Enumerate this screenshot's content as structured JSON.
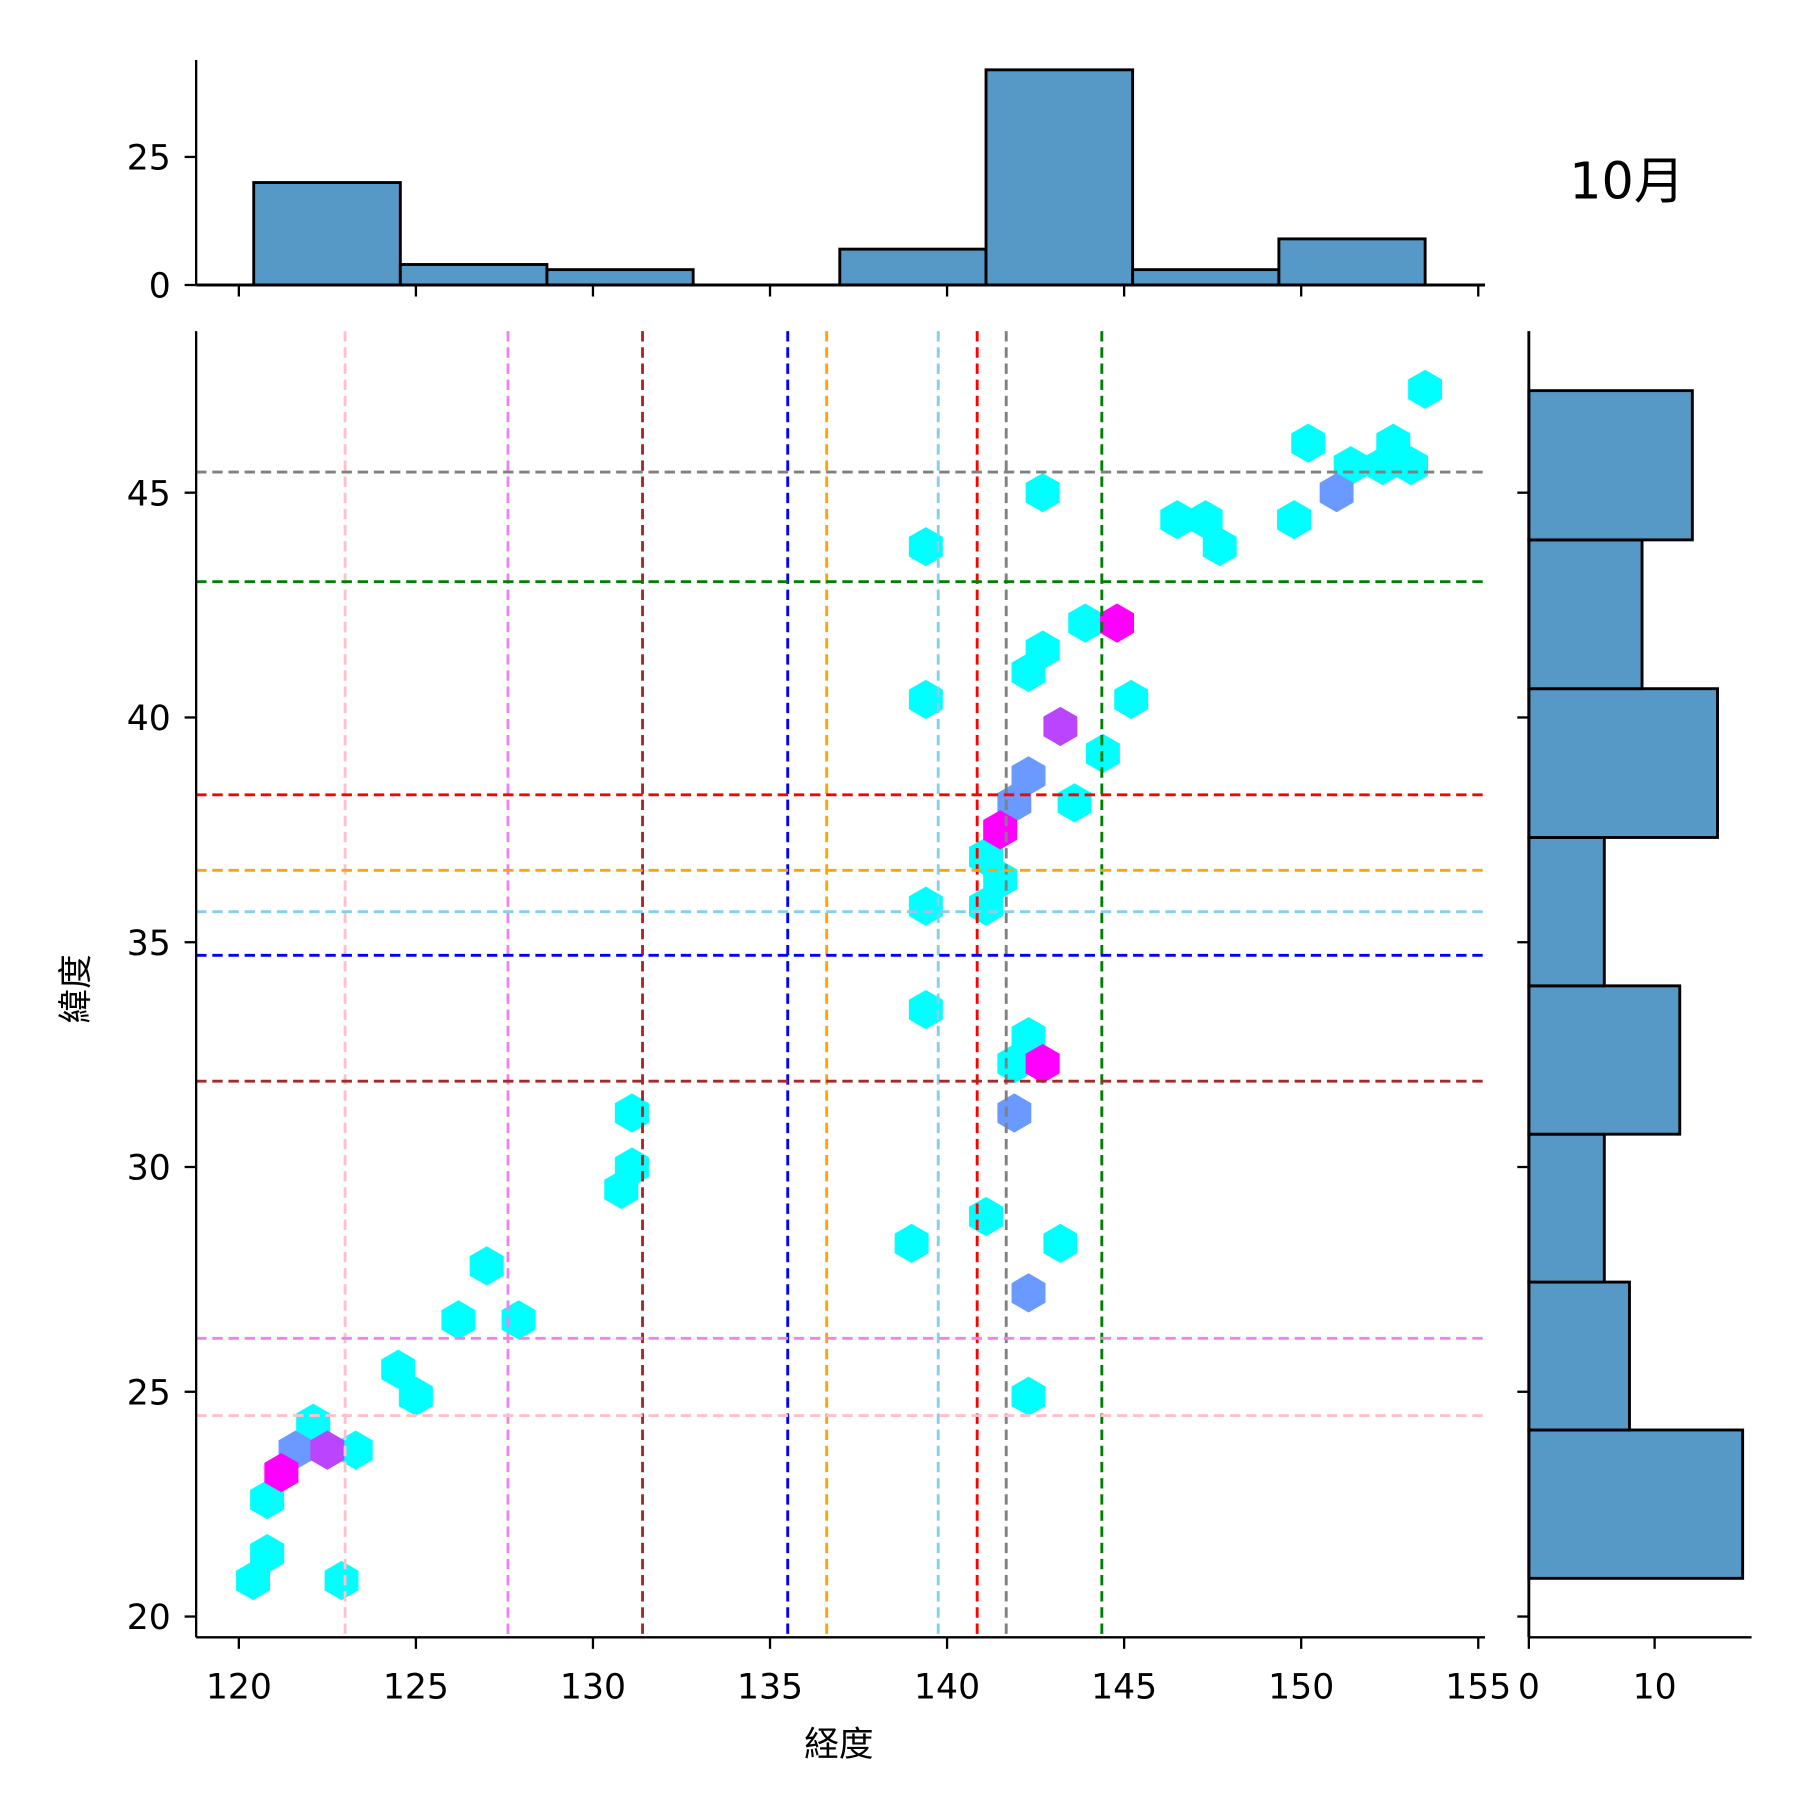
{
  "chart_data": {
    "type": "hexbin-joint",
    "title": "10月",
    "xlabel": "経度",
    "ylabel": "緯度",
    "xlim": [
      118.8,
      155.2
    ],
    "ylim": [
      19.5,
      48.5
    ],
    "xticks": [
      120,
      125,
      130,
      135,
      140,
      145,
      150,
      155
    ],
    "yticks": [
      20,
      25,
      30,
      35,
      40,
      45
    ],
    "colormap": "cool",
    "count_colors": {
      "1": "#00ffff",
      "2": "#6a99ff",
      "3": "#bb44ff",
      "4": "#ff00ff"
    },
    "hexbins": [
      {
        "lon": 153.5,
        "lat": 47.3,
        "count": 1
      },
      {
        "lon": 150.2,
        "lat": 46.1,
        "count": 1
      },
      {
        "lon": 151.4,
        "lat": 45.6,
        "count": 1
      },
      {
        "lon": 152.3,
        "lat": 45.6,
        "count": 1
      },
      {
        "lon": 152.6,
        "lat": 46.1,
        "count": 1
      },
      {
        "lon": 153.1,
        "lat": 45.6,
        "count": 1
      },
      {
        "lon": 142.7,
        "lat": 45.0,
        "count": 1
      },
      {
        "lon": 146.5,
        "lat": 44.4,
        "count": 1
      },
      {
        "lon": 147.3,
        "lat": 44.4,
        "count": 1
      },
      {
        "lon": 147.7,
        "lat": 43.8,
        "count": 1
      },
      {
        "lon": 149.8,
        "lat": 44.4,
        "count": 1
      },
      {
        "lon": 139.4,
        "lat": 43.8,
        "count": 1
      },
      {
        "lon": 143.9,
        "lat": 42.1,
        "count": 1
      },
      {
        "lon": 142.7,
        "lat": 41.5,
        "count": 1
      },
      {
        "lon": 142.3,
        "lat": 41.0,
        "count": 1
      },
      {
        "lon": 145.2,
        "lat": 40.4,
        "count": 1
      },
      {
        "lon": 139.4,
        "lat": 40.4,
        "count": 1
      },
      {
        "lon": 144.4,
        "lat": 39.2,
        "count": 1
      },
      {
        "lon": 143.6,
        "lat": 38.1,
        "count": 1
      },
      {
        "lon": 141.1,
        "lat": 36.9,
        "count": 1
      },
      {
        "lon": 141.5,
        "lat": 36.4,
        "count": 1
      },
      {
        "lon": 141.1,
        "lat": 35.8,
        "count": 1
      },
      {
        "lon": 139.4,
        "lat": 35.8,
        "count": 1
      },
      {
        "lon": 139.4,
        "lat": 33.5,
        "count": 1
      },
      {
        "lon": 142.3,
        "lat": 32.9,
        "count": 1
      },
      {
        "lon": 141.9,
        "lat": 32.3,
        "count": 1
      },
      {
        "lon": 131.1,
        "lat": 31.2,
        "count": 1
      },
      {
        "lon": 131.1,
        "lat": 30.0,
        "count": 1
      },
      {
        "lon": 130.8,
        "lat": 29.5,
        "count": 1
      },
      {
        "lon": 141.1,
        "lat": 28.9,
        "count": 1
      },
      {
        "lon": 139.0,
        "lat": 28.3,
        "count": 1
      },
      {
        "lon": 143.2,
        "lat": 28.3,
        "count": 1
      },
      {
        "lon": 127.0,
        "lat": 27.8,
        "count": 1
      },
      {
        "lon": 126.2,
        "lat": 26.6,
        "count": 1
      },
      {
        "lon": 127.9,
        "lat": 26.6,
        "count": 1
      },
      {
        "lon": 124.5,
        "lat": 25.5,
        "count": 1
      },
      {
        "lon": 125.0,
        "lat": 24.9,
        "count": 1
      },
      {
        "lon": 142.3,
        "lat": 24.9,
        "count": 1
      },
      {
        "lon": 122.1,
        "lat": 24.3,
        "count": 1
      },
      {
        "lon": 123.3,
        "lat": 23.7,
        "count": 1
      },
      {
        "lon": 120.8,
        "lat": 22.6,
        "count": 1
      },
      {
        "lon": 120.8,
        "lat": 21.4,
        "count": 1
      },
      {
        "lon": 120.4,
        "lat": 20.8,
        "count": 1
      },
      {
        "lon": 122.9,
        "lat": 20.8,
        "count": 1
      },
      {
        "lon": 151.0,
        "lat": 45.0,
        "count": 2
      },
      {
        "lon": 142.3,
        "lat": 38.7,
        "count": 2
      },
      {
        "lon": 141.9,
        "lat": 38.1,
        "count": 2
      },
      {
        "lon": 141.9,
        "lat": 31.2,
        "count": 2
      },
      {
        "lon": 142.3,
        "lat": 27.2,
        "count": 2
      },
      {
        "lon": 121.6,
        "lat": 23.7,
        "count": 2
      },
      {
        "lon": 143.2,
        "lat": 39.8,
        "count": 3
      },
      {
        "lon": 122.5,
        "lat": 23.7,
        "count": 3
      },
      {
        "lon": 144.8,
        "lat": 42.1,
        "count": 4
      },
      {
        "lon": 141.5,
        "lat": 37.5,
        "count": 4
      },
      {
        "lon": 142.7,
        "lat": 32.3,
        "count": 4
      },
      {
        "lon": 121.2,
        "lat": 23.2,
        "count": 4
      }
    ],
    "vertical_lines": [
      {
        "lon": 123.0,
        "color": "#ffc0cb"
      },
      {
        "lon": 127.6,
        "color": "#ee82ee"
      },
      {
        "lon": 131.4,
        "color": "#a52a2a"
      },
      {
        "lon": 135.5,
        "color": "#0000ff"
      },
      {
        "lon": 136.6,
        "color": "#ffa500"
      },
      {
        "lon": 139.75,
        "color": "#87ceeb"
      },
      {
        "lon": 140.85,
        "color": "#ff0000"
      },
      {
        "lon": 141.67,
        "color": "#808080"
      },
      {
        "lon": 144.37,
        "color": "#008000"
      }
    ],
    "horizontal_lines": [
      {
        "lat": 45.46,
        "color": "#808080"
      },
      {
        "lat": 43.02,
        "color": "#008000"
      },
      {
        "lat": 38.28,
        "color": "#ff0000"
      },
      {
        "lat": 36.6,
        "color": "#ffa500"
      },
      {
        "lat": 35.68,
        "color": "#87ceeb"
      },
      {
        "lat": 34.71,
        "color": "#0000ff"
      },
      {
        "lat": 31.91,
        "color": "#a52a2a"
      },
      {
        "lat": 26.19,
        "color": "#ee82ee"
      },
      {
        "lat": 24.47,
        "color": "#ffc0cb"
      }
    ],
    "top_histogram": {
      "bin_edges": [
        120.42,
        124.56,
        128.7,
        132.83,
        136.97,
        141.1,
        145.24,
        149.37,
        153.5
      ],
      "counts": [
        20,
        4,
        3,
        0,
        7,
        42,
        3,
        9
      ],
      "yticks": [
        0,
        25
      ],
      "ylim": [
        0,
        44
      ],
      "color": "#5799c6"
    },
    "right_histogram": {
      "bin_edges": [
        20.85,
        24.15,
        27.44,
        30.73,
        34.03,
        37.33,
        40.64,
        43.95,
        47.27
      ],
      "counts": [
        17,
        8,
        6,
        12,
        6,
        15,
        9,
        13
      ],
      "xticks": [
        0,
        10
      ],
      "xlim": [
        0,
        17.7
      ],
      "color": "#5799c6"
    }
  }
}
